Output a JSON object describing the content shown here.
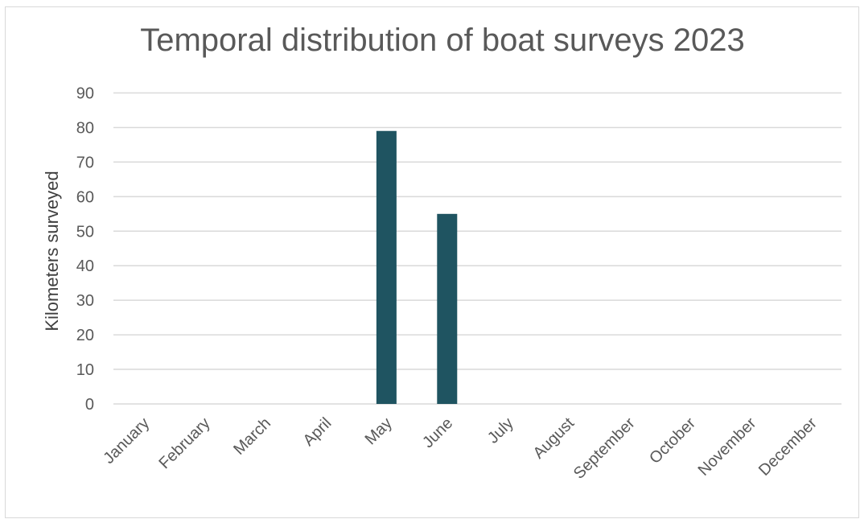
{
  "chart_data": {
    "type": "bar",
    "title": "Temporal distribution of boat surveys 2023",
    "xlabel": "",
    "ylabel": "Kilometers surveyed",
    "categories": [
      "January",
      "February",
      "March",
      "April",
      "May",
      "June",
      "July",
      "August",
      "September",
      "October",
      "November",
      "December"
    ],
    "values": [
      0,
      0,
      0,
      0,
      79,
      55,
      0,
      0,
      0,
      0,
      0,
      0
    ],
    "ylim": [
      0,
      90
    ],
    "yticks": [
      "0",
      "10",
      "20",
      "30",
      "40",
      "50",
      "60",
      "70",
      "80",
      "90"
    ],
    "grid": true,
    "legend": "none",
    "colors": {
      "bar": "#1f5461",
      "grid": "#d9d9d9",
      "text": "#595959"
    }
  }
}
